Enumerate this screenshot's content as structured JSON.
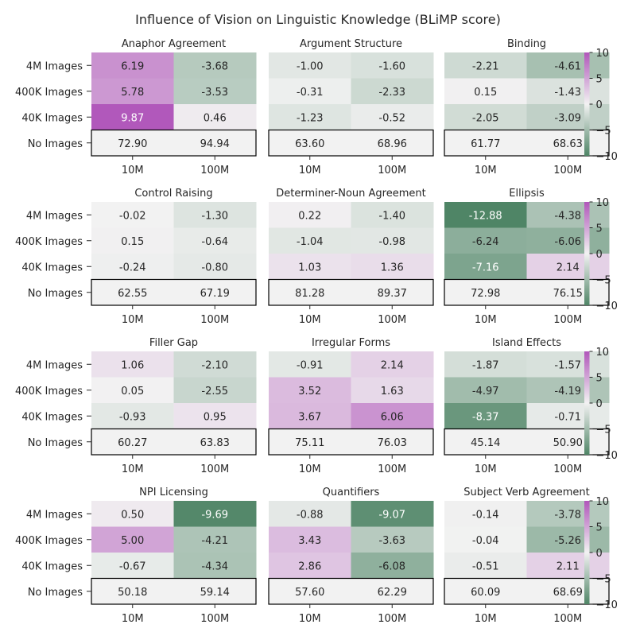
{
  "title": "Influence of Vision on Linguistic Knowledge (BLiMP score)",
  "chart_data": {
    "type": "heatmap",
    "title": "Influence of Vision on Linguistic Knowledge (BLiMP score)",
    "rows": [
      "4M Images",
      "400K Images",
      "40K Images",
      "No Images"
    ],
    "columns": [
      "10M",
      "100M"
    ],
    "colorbar": {
      "min": -10,
      "max": 10,
      "ticks": [
        10,
        5,
        0,
        -5,
        -10
      ],
      "low_color": "#4f8566",
      "mid_color": "#f2f2f2",
      "high_color": "#b056ba"
    },
    "note_last_row": "No Images row shows absolute scores (uncolored, boxed)",
    "panels": [
      {
        "title": "Anaphor Agreement",
        "values": [
          [
            6.19,
            -3.68
          ],
          [
            5.78,
            -3.53
          ],
          [
            9.87,
            0.46
          ]
        ],
        "baseline": [
          72.9,
          94.94
        ]
      },
      {
        "title": "Argument Structure",
        "values": [
          [
            -1.0,
            -1.6
          ],
          [
            -0.31,
            -2.33
          ],
          [
            -1.23,
            -0.52
          ]
        ],
        "baseline": [
          63.6,
          68.96
        ]
      },
      {
        "title": "Binding",
        "values": [
          [
            -2.21,
            -4.61
          ],
          [
            0.15,
            -1.43
          ],
          [
            -2.05,
            -3.09
          ]
        ],
        "baseline": [
          61.77,
          68.63
        ]
      },
      {
        "title": "Control Raising",
        "values": [
          [
            -0.02,
            -1.3
          ],
          [
            0.15,
            -0.64
          ],
          [
            -0.24,
            -0.8
          ]
        ],
        "baseline": [
          62.55,
          67.19
        ]
      },
      {
        "title": "Determiner-Noun Agreement",
        "values": [
          [
            0.22,
            -1.4
          ],
          [
            -1.04,
            -0.98
          ],
          [
            1.03,
            1.36
          ]
        ],
        "baseline": [
          81.28,
          89.37
        ]
      },
      {
        "title": "Ellipsis",
        "values": [
          [
            -12.88,
            -4.38
          ],
          [
            -6.24,
            -6.06
          ],
          [
            -7.16,
            2.14
          ]
        ],
        "baseline": [
          72.98,
          76.15
        ]
      },
      {
        "title": "Filler Gap",
        "values": [
          [
            1.06,
            -2.1
          ],
          [
            0.05,
            -2.55
          ],
          [
            -0.93,
            0.95
          ]
        ],
        "baseline": [
          60.27,
          63.83
        ]
      },
      {
        "title": "Irregular Forms",
        "values": [
          [
            -0.91,
            2.14
          ],
          [
            3.52,
            1.63
          ],
          [
            3.67,
            6.06
          ]
        ],
        "baseline": [
          75.11,
          76.03
        ]
      },
      {
        "title": "Island Effects",
        "values": [
          [
            -1.87,
            -1.57
          ],
          [
            -4.97,
            -4.19
          ],
          [
            -8.37,
            -0.71
          ]
        ],
        "baseline": [
          45.14,
          50.9
        ]
      },
      {
        "title": "NPI Licensing",
        "values": [
          [
            0.5,
            -9.69
          ],
          [
            5.0,
            -4.21
          ],
          [
            -0.67,
            -4.34
          ]
        ],
        "baseline": [
          50.18,
          59.14
        ]
      },
      {
        "title": "Quantifiers",
        "values": [
          [
            -0.88,
            -9.07
          ],
          [
            3.43,
            -3.63
          ],
          [
            2.86,
            -6.08
          ]
        ],
        "baseline": [
          57.6,
          62.29
        ]
      },
      {
        "title": "Subject Verb Agreement",
        "values": [
          [
            -0.14,
            -3.78
          ],
          [
            -0.04,
            -5.26
          ],
          [
            -0.51,
            2.11
          ]
        ],
        "baseline": [
          60.09,
          68.69
        ]
      }
    ]
  }
}
